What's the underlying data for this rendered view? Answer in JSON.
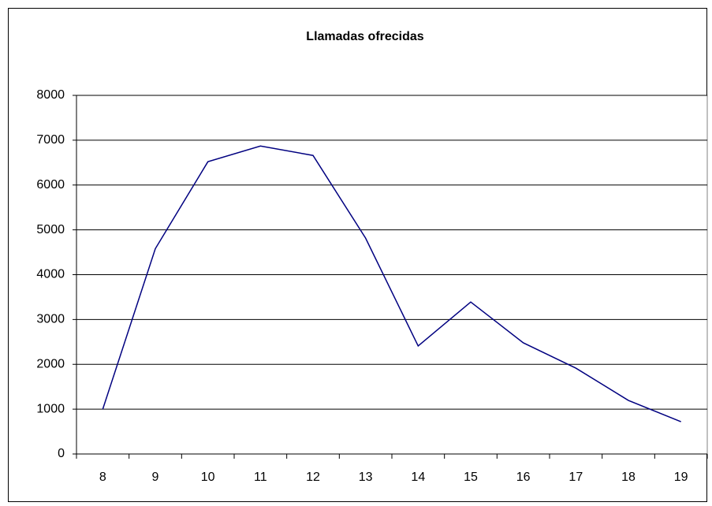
{
  "chart_data": {
    "type": "line",
    "title": "Llamadas ofrecidas",
    "categories": [
      8,
      9,
      10,
      11,
      12,
      13,
      14,
      15,
      16,
      17,
      18,
      19
    ],
    "values": [
      1000,
      4580,
      6520,
      6870,
      6660,
      4815,
      2410,
      3390,
      2480,
      1915,
      1195,
      720
    ],
    "color": "#000080",
    "ylim": [
      0,
      8000
    ],
    "yticks": [
      0,
      1000,
      2000,
      3000,
      4000,
      5000,
      6000,
      7000,
      8000
    ],
    "grid": true
  }
}
